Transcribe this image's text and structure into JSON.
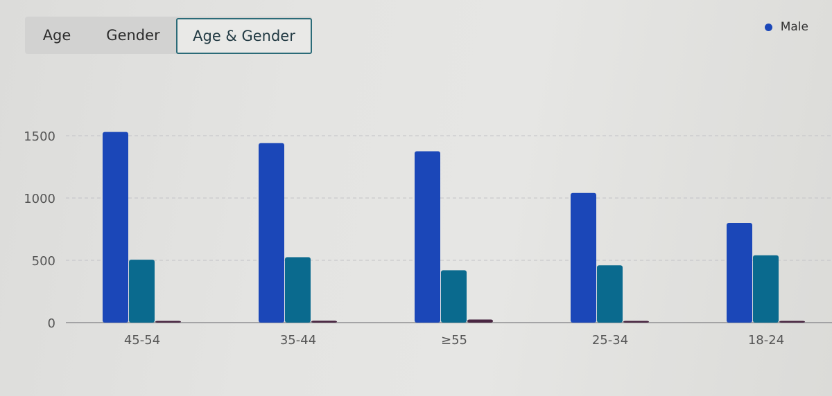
{
  "tabs": [
    {
      "label": "Age",
      "active": false
    },
    {
      "label": "Gender",
      "active": false
    },
    {
      "label": "Age & Gender",
      "active": true
    }
  ],
  "legend": {
    "items": [
      {
        "label": "Male",
        "color": "#1b47b8"
      }
    ]
  },
  "chart_data": {
    "type": "bar",
    "categories": [
      "45-54",
      "35-44",
      "≥55",
      "25-34",
      "18-24"
    ],
    "series": [
      {
        "name": "Male",
        "color": "#1b47b8",
        "values": [
          1530,
          1440,
          1375,
          1040,
          800
        ]
      },
      {
        "color": "#0a6a8e",
        "values": [
          505,
          525,
          420,
          460,
          540
        ]
      },
      {
        "color": "#4a2742",
        "values": [
          10,
          15,
          25,
          5,
          5
        ]
      }
    ],
    "yticks": [
      0,
      500,
      1000,
      1500
    ],
    "ylim": [
      0,
      1600
    ],
    "grid": true,
    "legend_position": "top-right"
  }
}
